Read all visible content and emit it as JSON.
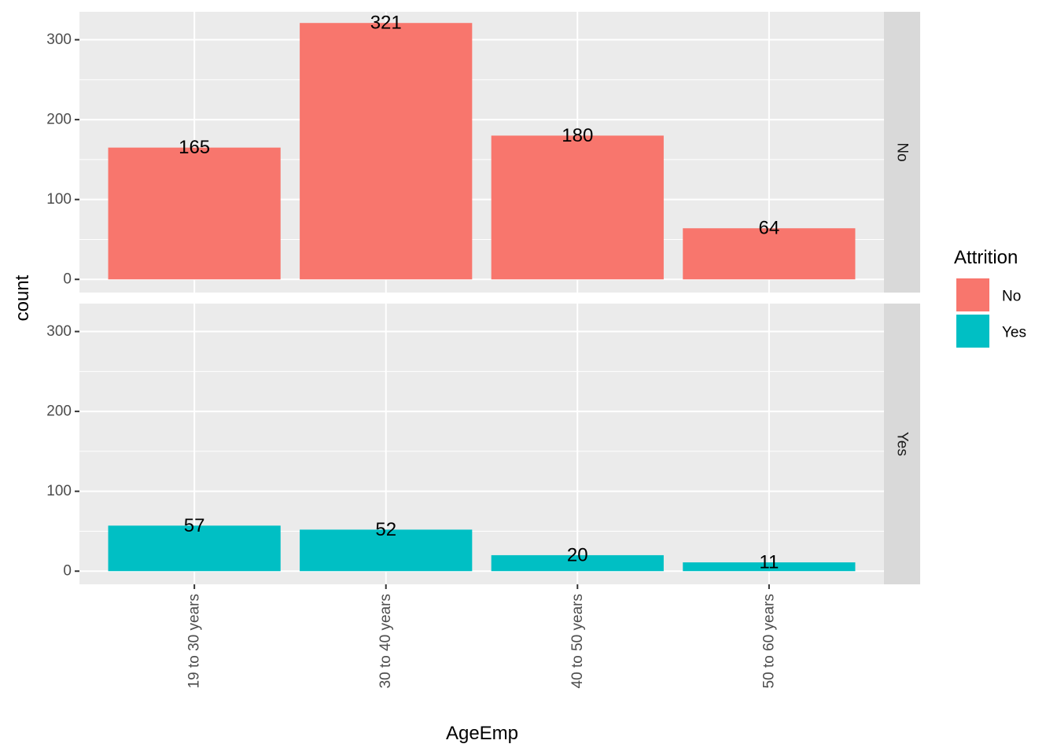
{
  "chart_data": {
    "type": "bar",
    "xlabel": "AgeEmp",
    "ylabel": "count",
    "categories": [
      "19 to 30 years",
      "30 to 40 years",
      "40 to 50 years",
      "50 to 60 years"
    ],
    "ylim": [
      0,
      335
    ],
    "yticks": [
      0,
      100,
      200,
      300
    ],
    "grid": true,
    "facets": [
      {
        "label": "No",
        "series": "No",
        "values": [
          165,
          321,
          180,
          64
        ]
      },
      {
        "label": "Yes",
        "series": "Yes",
        "values": [
          57,
          52,
          20,
          11
        ]
      }
    ],
    "legend": {
      "title": "Attrition",
      "position": "right",
      "items": [
        {
          "label": "No",
          "color": "#F8766D"
        },
        {
          "label": "Yes",
          "color": "#00BFC4"
        }
      ]
    }
  },
  "colors": {
    "panel_background": "#EBEBEB",
    "strip_background": "#D9D9D9",
    "grid": "#FFFFFF",
    "No": "#F8766D",
    "Yes": "#00BFC4"
  }
}
